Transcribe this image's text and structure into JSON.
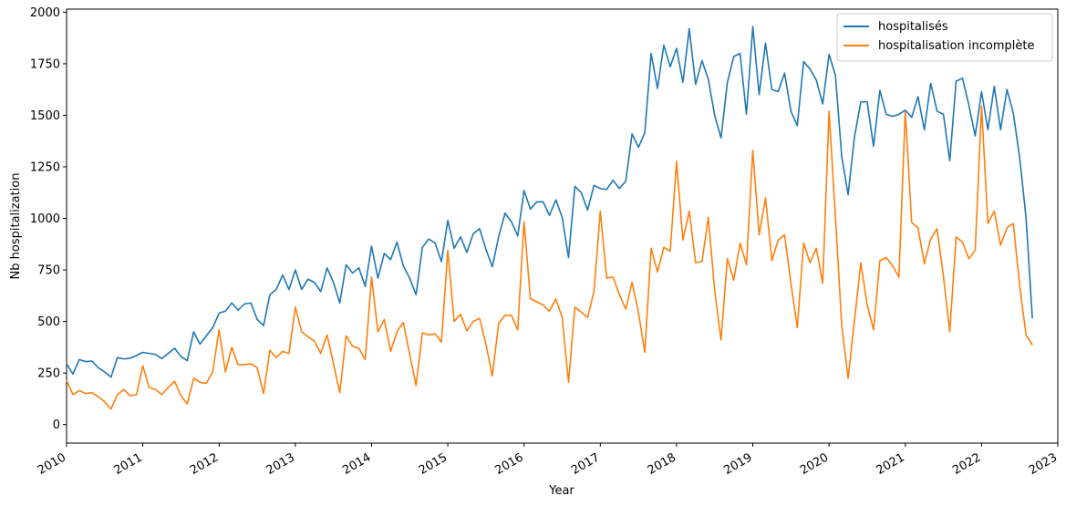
{
  "chart_data": {
    "type": "line",
    "xlabel": "Year",
    "ylabel": "Nb hospitalization",
    "xlim": [
      "2010-01",
      "2023-01"
    ],
    "ylim": [
      -90,
      2015
    ],
    "yticks": [
      0,
      250,
      500,
      750,
      1000,
      1250,
      1500,
      1750,
      2000
    ],
    "xticks": [
      "2010",
      "2011",
      "2012",
      "2013",
      "2014",
      "2015",
      "2016",
      "2017",
      "2018",
      "2019",
      "2020",
      "2021",
      "2022",
      "2023"
    ],
    "legend_position": "top-right",
    "x_start": "2010-01",
    "series": [
      {
        "name": "hospitalisés",
        "color": "#1f77b4",
        "values": [
          295,
          245,
          315,
          305,
          308,
          275,
          255,
          230,
          325,
          318,
          322,
          335,
          350,
          345,
          340,
          320,
          345,
          370,
          330,
          310,
          450,
          390,
          430,
          470,
          540,
          550,
          590,
          555,
          585,
          590,
          510,
          480,
          630,
          655,
          725,
          655,
          750,
          655,
          705,
          690,
          645,
          760,
          690,
          590,
          775,
          735,
          760,
          670,
          865,
          710,
          830,
          800,
          885,
          770,
          710,
          630,
          860,
          900,
          880,
          790,
          990,
          855,
          910,
          835,
          925,
          950,
          850,
          765,
          910,
          1025,
          985,
          915,
          1135,
          1045,
          1080,
          1080,
          1015,
          1090,
          1005,
          810,
          1155,
          1125,
          1040,
          1160,
          1145,
          1140,
          1185,
          1145,
          1180,
          1410,
          1345,
          1415,
          1800,
          1630,
          1840,
          1735,
          1825,
          1660,
          1920,
          1650,
          1765,
          1675,
          1500,
          1390,
          1660,
          1785,
          1800,
          1505,
          1930,
          1600,
          1850,
          1625,
          1615,
          1705,
          1520,
          1450,
          1760,
          1725,
          1670,
          1555,
          1795,
          1695,
          1300,
          1115,
          1395,
          1565,
          1565,
          1350,
          1620,
          1505,
          1495,
          1505,
          1525,
          1490,
          1590,
          1430,
          1655,
          1520,
          1505,
          1280,
          1665,
          1680,
          1550,
          1400,
          1615,
          1430,
          1640,
          1430,
          1625,
          1510,
          1295,
          1005,
          515
        ]
      },
      {
        "name": "hospitalisation incomplète",
        "color": "#ff7f0e",
        "values": [
          215,
          145,
          165,
          150,
          155,
          135,
          110,
          75,
          145,
          170,
          140,
          145,
          285,
          180,
          170,
          145,
          180,
          210,
          140,
          100,
          225,
          205,
          200,
          255,
          460,
          255,
          375,
          290,
          290,
          295,
          275,
          150,
          360,
          325,
          355,
          345,
          570,
          450,
          425,
          405,
          345,
          435,
          295,
          155,
          430,
          380,
          370,
          315,
          715,
          450,
          510,
          355,
          450,
          495,
          340,
          190,
          445,
          435,
          440,
          400,
          845,
          500,
          535,
          455,
          500,
          515,
          390,
          235,
          490,
          530,
          530,
          460,
          985,
          610,
          595,
          580,
          550,
          610,
          520,
          205,
          570,
          545,
          520,
          645,
          1035,
          710,
          715,
          630,
          560,
          690,
          545,
          350,
          855,
          740,
          860,
          840,
          1275,
          895,
          1035,
          785,
          790,
          1005,
          650,
          410,
          805,
          700,
          880,
          775,
          1330,
          920,
          1100,
          795,
          895,
          920,
          685,
          470,
          880,
          785,
          855,
          685,
          1520,
          1010,
          480,
          225,
          505,
          785,
          580,
          460,
          795,
          810,
          770,
          715,
          1520,
          980,
          955,
          780,
          900,
          950,
          720,
          450,
          910,
          885,
          805,
          845,
          1545,
          975,
          1035,
          870,
          955,
          975,
          675,
          435,
          385
        ]
      }
    ]
  }
}
